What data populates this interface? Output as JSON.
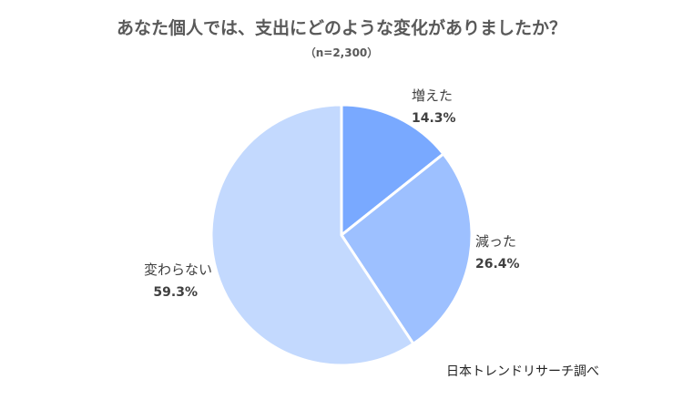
{
  "chart_data": {
    "type": "pie",
    "title": "あなた個人では、支出にどのような変化がありましたか？",
    "subtitle": "（n=2,300）",
    "slices": [
      {
        "label": "増えた",
        "value": 14.3,
        "value_label": "14.3%",
        "color": "#79A9FF"
      },
      {
        "label": "減った",
        "value": 26.4,
        "value_label": "26.4%",
        "color": "#9DC0FF"
      },
      {
        "label": "変わらない",
        "value": 59.3,
        "value_label": "59.3%",
        "color": "#C3D9FE"
      }
    ],
    "start_angle": "12 o'clock",
    "direction": "clockwise",
    "slice_border_color": "#ffffff",
    "source_note": "日本トレンドリサーチ調べ"
  }
}
